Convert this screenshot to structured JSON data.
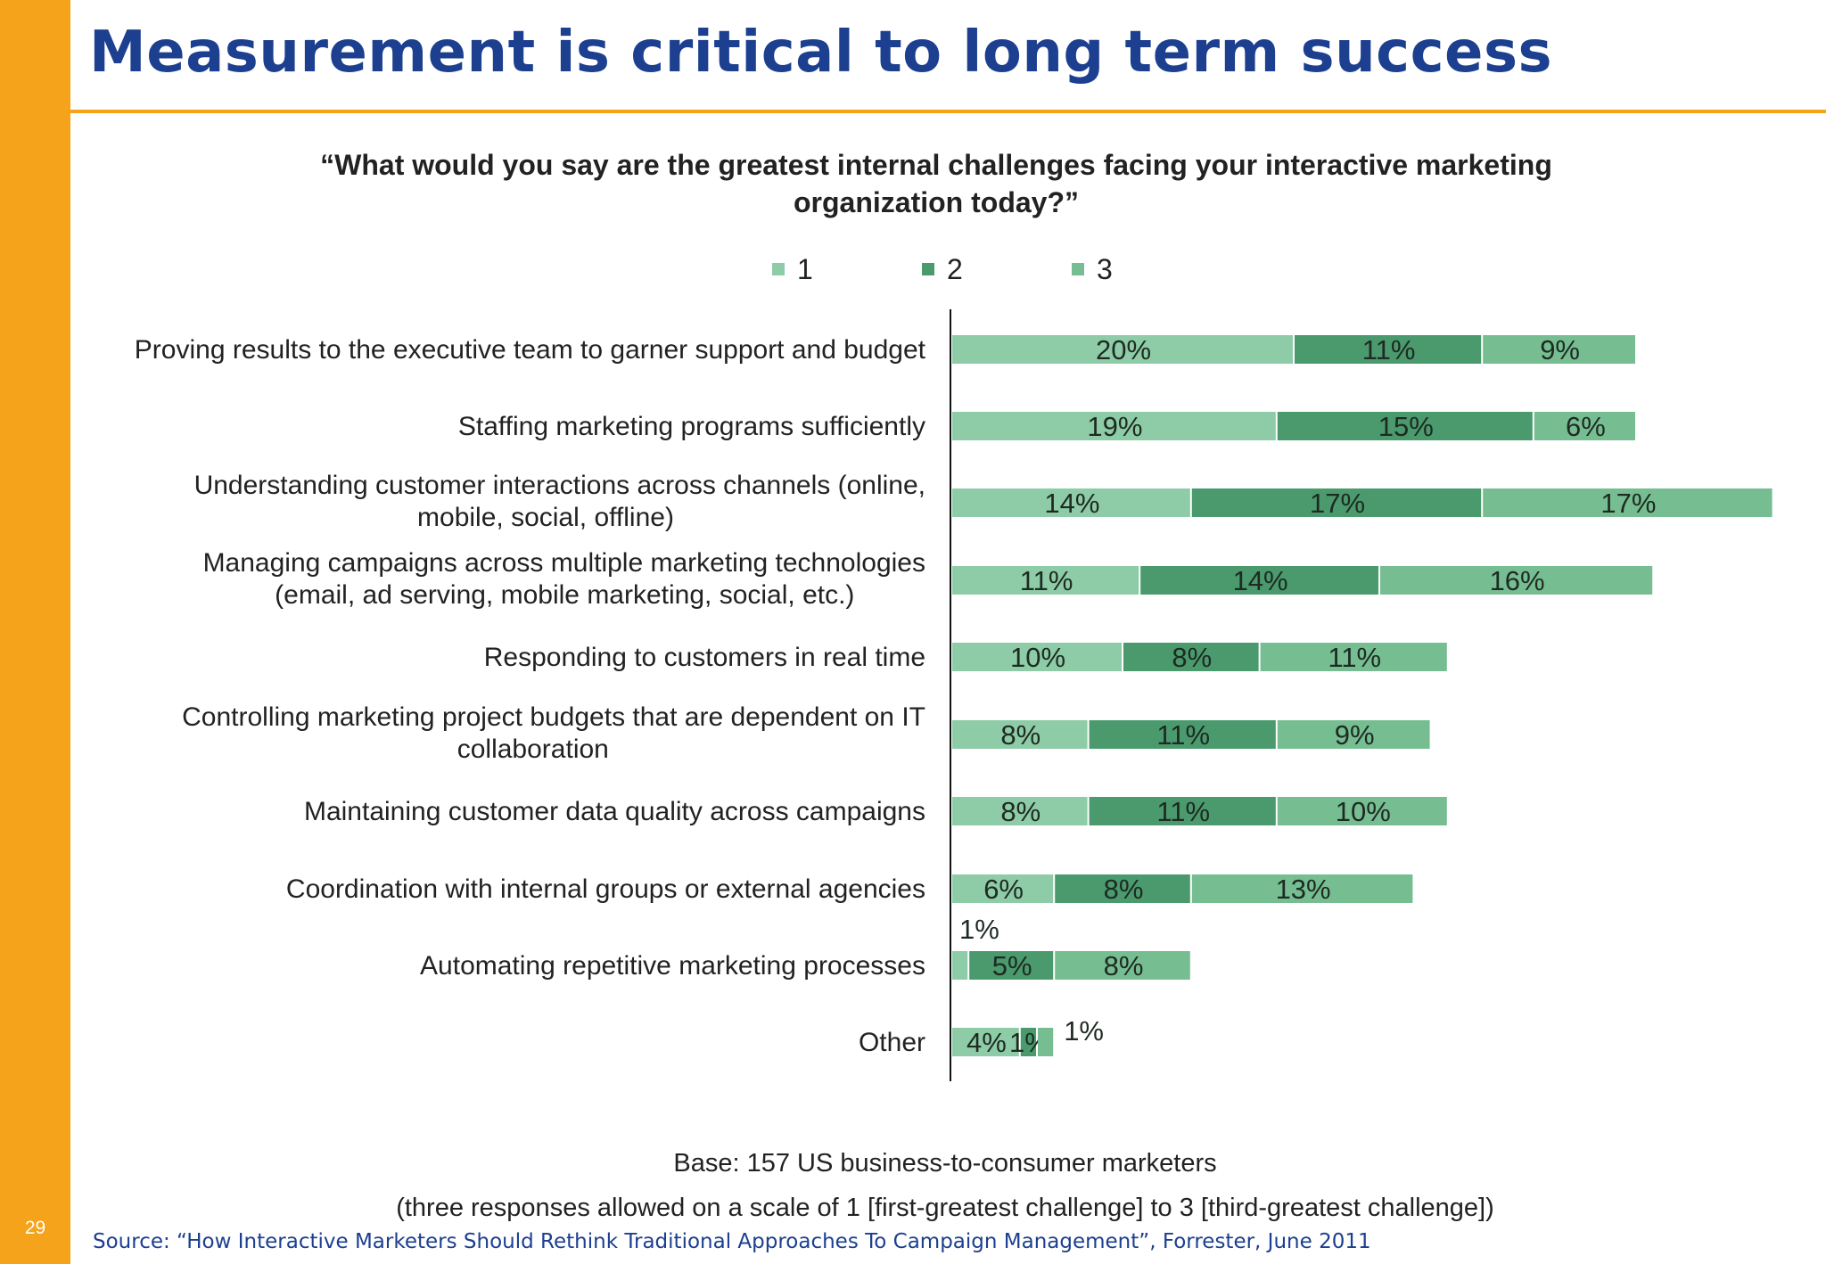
{
  "slide": {
    "title": "Measurement is critical to long term success",
    "page_number": "29",
    "accent_color": "#F5A31A",
    "title_color": "#1C3F8F",
    "source": "Source: “How Interactive Marketers Should Rethink Traditional Approaches To Campaign Management”, Forrester, June 2011"
  },
  "chart_data": {
    "type": "bar",
    "orientation": "horizontal",
    "stacked": true,
    "title": "“What would you say are the greatest internal challenges facing your interactive marketing organization today?”",
    "legend_position": "top",
    "categories": [
      "Proving results to the executive team to garner support and budget",
      "Staffing marketing programs sufficiently",
      "Understanding customer interactions across channels (online, mobile, social, offline)",
      "Managing campaigns across multiple marketing technologies (email, ad serving, mobile marketing, social, etc.)",
      "Responding to customers in real time",
      "Controlling marketing project budgets that are dependent on IT collaboration",
      "Maintaining customer data quality across campaigns",
      "Coordination with internal groups or external agencies",
      "Automating repetitive marketing processes",
      "Other"
    ],
    "series": [
      {
        "name": "1",
        "color": "#8DCCA6",
        "values": [
          20,
          19,
          14,
          11,
          10,
          8,
          8,
          6,
          1,
          4
        ]
      },
      {
        "name": "2",
        "color": "#4A9A6E",
        "values": [
          11,
          15,
          17,
          14,
          8,
          11,
          11,
          8,
          5,
          1
        ]
      },
      {
        "name": "3",
        "color": "#76BE92",
        "values": [
          9,
          6,
          17,
          16,
          11,
          9,
          10,
          13,
          8,
          1
        ]
      }
    ],
    "data_labels": [
      [
        "20%",
        "11%",
        "9%"
      ],
      [
        "19%",
        "15%",
        "6%"
      ],
      [
        "14%",
        "17%",
        "17%"
      ],
      [
        "11%",
        "14%",
        "16%"
      ],
      [
        "10%",
        "8%",
        "11%"
      ],
      [
        "8%",
        "11%",
        "9%"
      ],
      [
        "8%",
        "11%",
        "10%"
      ],
      [
        "6%",
        "8%",
        "13%"
      ],
      [
        "1%",
        "5%",
        "8%"
      ],
      [
        "4%",
        "1%",
        "1%"
      ]
    ],
    "xlim": [
      0,
      48
    ],
    "grid": false,
    "note_lines": [
      "Base: 157 US business-to-consumer marketers",
      "(three responses allowed on a scale of 1 [first-greatest challenge] to 3 [third-greatest challenge])"
    ]
  }
}
